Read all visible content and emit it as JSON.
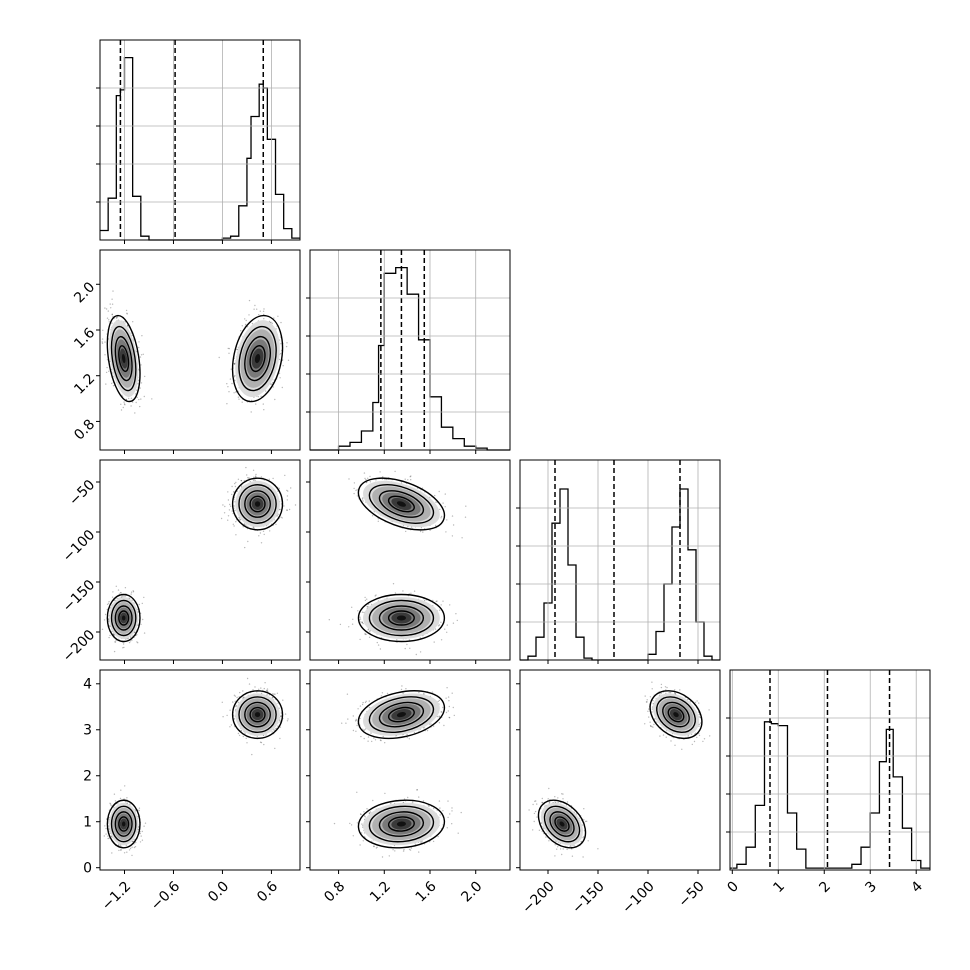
{
  "chart_data": {
    "type": "corner",
    "grid": true,
    "dimensions": [
      {
        "ticks": [
          -1.2,
          -0.6,
          0.0,
          0.6
        ],
        "tick_labels": [
          "−1.2",
          "−0.6",
          "0.0",
          "0.6"
        ],
        "range": [
          -1.5,
          0.95
        ],
        "quantiles": [
          -1.25,
          -0.58,
          0.5
        ],
        "clusters": [
          {
            "center": -1.21,
            "sd": 0.085
          },
          {
            "center": 0.43,
            "sd": 0.13
          }
        ],
        "histogram": {
          "edges": [
            -1.5,
            -1.4,
            -1.3,
            -1.25,
            -1.2,
            -1.1,
            -1.0,
            -0.9,
            -0.8,
            0.0,
            0.1,
            0.2,
            0.3,
            0.35,
            0.45,
            0.5,
            0.55,
            0.65,
            0.75,
            0.85,
            0.95
          ],
          "counts": [
            0.05,
            0.22,
            0.76,
            0.79,
            0.96,
            0.23,
            0.02,
            0.0,
            0.0,
            0.01,
            0.02,
            0.18,
            0.43,
            0.65,
            0.82,
            0.8,
            0.53,
            0.24,
            0.06,
            0.01
          ]
        }
      },
      {
        "ticks": [
          0.8,
          1.2,
          1.6,
          2.0
        ],
        "tick_labels": [
          "0.8",
          "1.2",
          "1.6",
          "2.0"
        ],
        "range": [
          0.55,
          2.3
        ],
        "quantiles": [
          1.17,
          1.35,
          1.55
        ],
        "clusters": [
          {
            "center": 1.35,
            "sd": 0.16
          },
          {
            "center": 1.35,
            "sd": 0.16
          }
        ],
        "histogram": {
          "edges": [
            0.55,
            0.8,
            0.9,
            1.0,
            1.1,
            1.15,
            1.2,
            1.3,
            1.4,
            1.5,
            1.6,
            1.7,
            1.8,
            1.9,
            2.0,
            2.1,
            2.3
          ],
          "counts": [
            0.0,
            0.02,
            0.04,
            0.1,
            0.25,
            0.55,
            0.93,
            0.96,
            0.82,
            0.58,
            0.28,
            0.12,
            0.06,
            0.02,
            0.01,
            0.0
          ]
        }
      },
      {
        "ticks": [
          -200,
          -150,
          -100,
          -50
        ],
        "tick_labels": [
          "−200",
          "−150",
          "−100",
          "−50"
        ],
        "range": [
          -228,
          -28
        ],
        "quantiles": [
          -193,
          -134,
          -68
        ],
        "clusters": [
          {
            "center": -186,
            "sd": 10
          },
          {
            "center": -72,
            "sd": 11
          }
        ],
        "histogram": {
          "edges": [
            -228,
            -220,
            -212,
            -204,
            -196,
            -188,
            -180,
            -172,
            -164,
            -156,
            -108,
            -100,
            -92,
            -84,
            -76,
            -68,
            -60,
            -52,
            -44,
            -36,
            -28
          ],
          "counts": [
            0.0,
            0.02,
            0.12,
            0.3,
            0.72,
            0.9,
            0.5,
            0.12,
            0.01,
            0.0,
            0.0,
            0.03,
            0.15,
            0.4,
            0.7,
            0.9,
            0.58,
            0.2,
            0.02,
            0.0
          ]
        }
      },
      {
        "ticks": [
          0,
          1,
          2,
          3,
          4
        ],
        "tick_labels": [
          "0",
          "1",
          "2",
          "3",
          "4"
        ],
        "range": [
          -0.05,
          4.3
        ],
        "quantiles": [
          0.82,
          2.07,
          3.42
        ],
        "clusters": [
          {
            "center": 0.95,
            "sd": 0.22
          },
          {
            "center": 3.33,
            "sd": 0.22
          }
        ],
        "histogram": {
          "edges": [
            -0.05,
            0.1,
            0.3,
            0.5,
            0.7,
            0.85,
            1.0,
            1.2,
            1.4,
            1.6,
            2.6,
            2.8,
            3.0,
            3.2,
            3.35,
            3.5,
            3.7,
            3.9,
            4.1,
            4.3
          ],
          "counts": [
            0.01,
            0.03,
            0.12,
            0.34,
            0.78,
            0.77,
            0.76,
            0.3,
            0.11,
            0.01,
            0.03,
            0.12,
            0.3,
            0.57,
            0.74,
            0.49,
            0.22,
            0.05,
            0.01
          ]
        }
      }
    ]
  }
}
